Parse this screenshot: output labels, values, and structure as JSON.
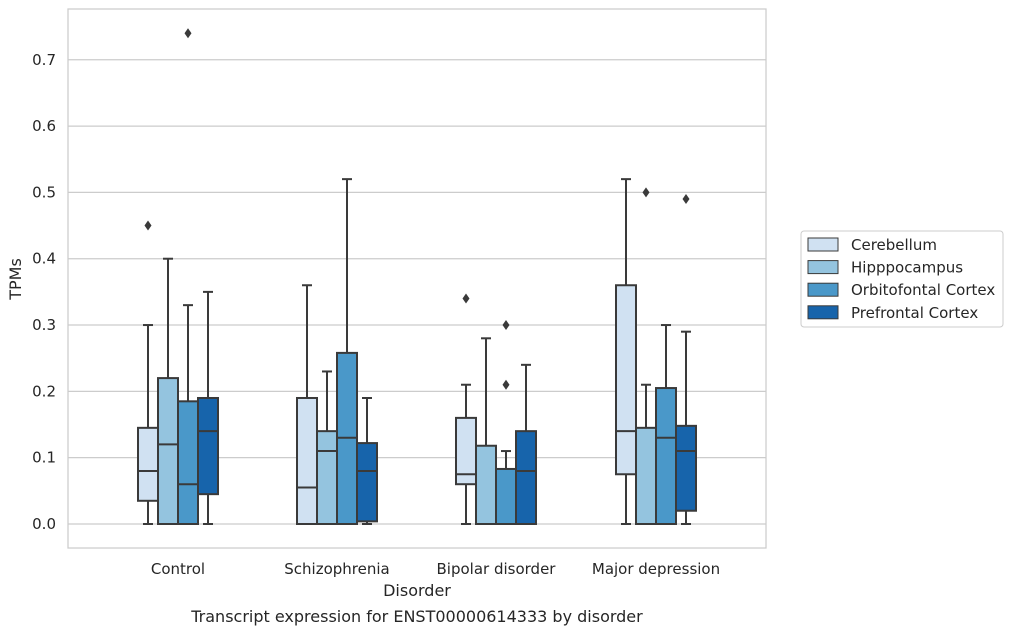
{
  "chart_data": {
    "type": "box",
    "title": "",
    "caption": "Transcript expression for ENST00000614333 by disorder",
    "xlabel": "Disorder",
    "ylabel": "TPMs",
    "ylim": [
      -0.035,
      0.778
    ],
    "yticks": [
      0.0,
      0.1,
      0.2,
      0.3,
      0.4,
      0.5,
      0.6,
      0.7
    ],
    "ytick_labels": [
      "0.0",
      "0.1",
      "0.2",
      "0.3",
      "0.4",
      "0.5",
      "0.6",
      "0.7"
    ],
    "grid": "horizontal",
    "legend_position": "right",
    "categories": [
      "Control",
      "Schizophrenia",
      "Bipolar disorder",
      "Major depression"
    ],
    "series": [
      {
        "name": "Cerebellum",
        "color": "#d0e1f2",
        "boxes": [
          {
            "whisker_low": 0.0,
            "q1": 0.035,
            "median": 0.08,
            "q3": 0.145,
            "whisker_high": 0.3,
            "outliers": [
              0.45
            ]
          },
          {
            "whisker_low": 0.0,
            "q1": 0.0,
            "median": 0.055,
            "q3": 0.19,
            "whisker_high": 0.36,
            "outliers": []
          },
          {
            "whisker_low": 0.0,
            "q1": 0.06,
            "median": 0.075,
            "q3": 0.16,
            "whisker_high": 0.21,
            "outliers": [
              0.34
            ]
          },
          {
            "whisker_low": 0.0,
            "q1": 0.075,
            "median": 0.14,
            "q3": 0.36,
            "whisker_high": 0.52,
            "outliers": []
          }
        ]
      },
      {
        "name": "Hipppocampus",
        "color": "#94c4df",
        "boxes": [
          {
            "whisker_low": 0.0,
            "q1": 0.0,
            "median": 0.12,
            "q3": 0.22,
            "whisker_high": 0.4,
            "outliers": []
          },
          {
            "whisker_low": 0.0,
            "q1": 0.0,
            "median": 0.11,
            "q3": 0.14,
            "whisker_high": 0.23,
            "outliers": []
          },
          {
            "whisker_low": 0.0,
            "q1": 0.0,
            "median": 0.0,
            "q3": 0.118,
            "whisker_high": 0.28,
            "outliers": []
          },
          {
            "whisker_low": 0.0,
            "q1": 0.0,
            "median": 0.0,
            "q3": 0.145,
            "whisker_high": 0.21,
            "outliers": [
              0.5
            ]
          }
        ]
      },
      {
        "name": "Orbitofontal Cortex",
        "color": "#4a98c9",
        "boxes": [
          {
            "whisker_low": 0.0,
            "q1": 0.0,
            "median": 0.06,
            "q3": 0.185,
            "whisker_high": 0.33,
            "outliers": [
              0.74
            ]
          },
          {
            "whisker_low": 0.0,
            "q1": 0.0,
            "median": 0.13,
            "q3": 0.258,
            "whisker_high": 0.52,
            "outliers": []
          },
          {
            "whisker_low": 0.0,
            "q1": 0.0,
            "median": 0.0,
            "q3": 0.083,
            "whisker_high": 0.11,
            "outliers": [
              0.21,
              0.3
            ]
          },
          {
            "whisker_low": 0.0,
            "q1": 0.0,
            "median": 0.13,
            "q3": 0.205,
            "whisker_high": 0.3,
            "outliers": []
          }
        ]
      },
      {
        "name": "Prefrontal Cortex",
        "color": "#1764ab",
        "boxes": [
          {
            "whisker_low": 0.0,
            "q1": 0.045,
            "median": 0.14,
            "q3": 0.19,
            "whisker_high": 0.35,
            "outliers": []
          },
          {
            "whisker_low": 0.0,
            "q1": 0.004,
            "median": 0.08,
            "q3": 0.122,
            "whisker_high": 0.19,
            "outliers": []
          },
          {
            "whisker_low": 0.0,
            "q1": 0.0,
            "median": 0.08,
            "q3": 0.14,
            "whisker_high": 0.24,
            "outliers": []
          },
          {
            "whisker_low": 0.0,
            "q1": 0.02,
            "median": 0.11,
            "q3": 0.148,
            "whisker_high": 0.29,
            "outliers": [
              0.49
            ]
          }
        ]
      }
    ]
  }
}
